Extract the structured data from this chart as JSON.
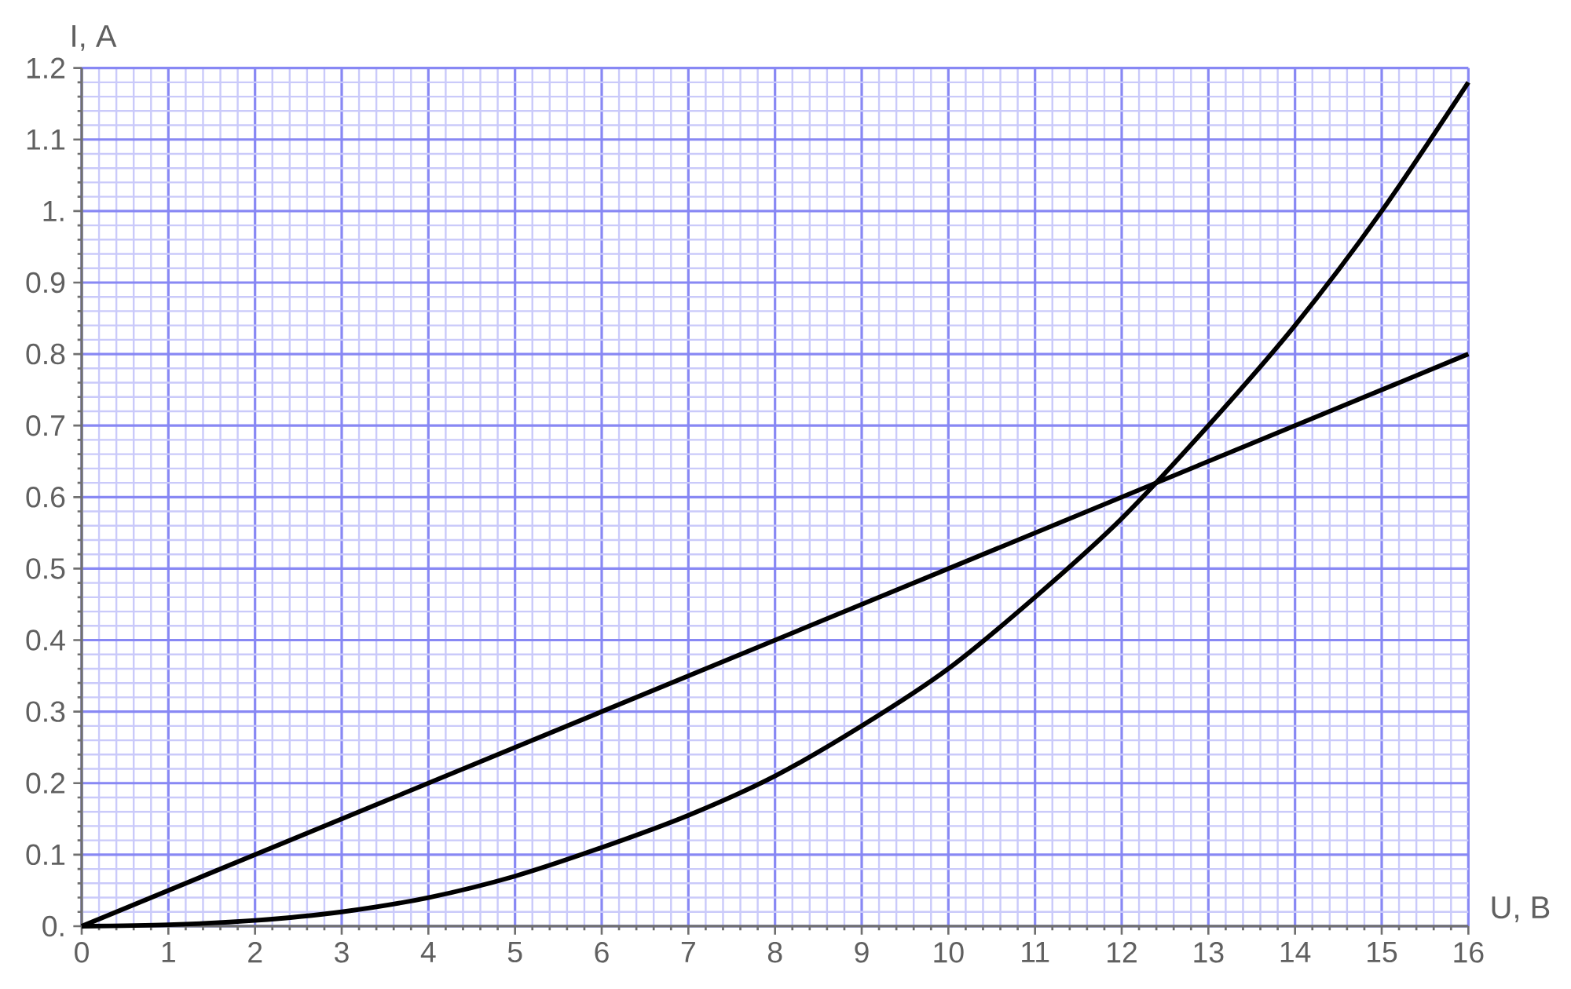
{
  "chart_data": {
    "type": "line",
    "xlabel": "U, B",
    "ylabel": "I, A",
    "grid": true,
    "xlim": [
      0,
      16
    ],
    "ylim": [
      0,
      1.2
    ],
    "xticks": [
      0,
      {
        "value": 0.2,
        "label": null
      },
      {
        "value": 0.4,
        "label": null
      },
      {
        "value": 0.6,
        "label": null
      },
      {
        "value": 0.8,
        "label": null
      },
      1,
      {
        "value": 1.2,
        "label": null
      },
      {
        "value": 1.4,
        "label": null
      },
      {
        "value": 1.6,
        "label": null
      },
      {
        "value": 1.8,
        "label": null
      },
      2,
      {
        "value": 2.2,
        "label": null
      },
      {
        "value": 2.4,
        "label": null
      },
      {
        "value": 2.6,
        "label": null
      },
      {
        "value": 2.8,
        "label": null
      },
      3,
      {
        "value": 3.2,
        "label": null
      },
      {
        "value": 3.4,
        "label": null
      },
      {
        "value": 3.6,
        "label": null
      },
      {
        "value": 3.8,
        "label": null
      },
      4,
      {
        "value": 4.2,
        "label": null
      },
      {
        "value": 4.4,
        "label": null
      },
      {
        "value": 4.6,
        "label": null
      },
      {
        "value": 4.8,
        "label": null
      },
      5,
      {
        "value": 5.2,
        "label": null
      },
      {
        "value": 5.4,
        "label": null
      },
      {
        "value": 5.6,
        "label": null
      },
      {
        "value": 5.8,
        "label": null
      },
      6,
      {
        "value": 6.2,
        "label": null
      },
      {
        "value": 6.4,
        "label": null
      },
      {
        "value": 6.6,
        "label": null
      },
      {
        "value": 6.8,
        "label": null
      },
      7,
      {
        "value": 7.2,
        "label": null
      },
      {
        "value": 7.4,
        "label": null
      },
      {
        "value": 7.6,
        "label": null
      },
      {
        "value": 7.8,
        "label": null
      },
      8,
      {
        "value": 8.2,
        "label": null
      },
      {
        "value": 8.4,
        "label": null
      },
      {
        "value": 8.6,
        "label": null
      },
      {
        "value": 8.8,
        "label": null
      },
      9,
      {
        "value": 9.2,
        "label": null
      },
      {
        "value": 9.4,
        "label": null
      },
      {
        "value": 9.6,
        "label": null
      },
      {
        "value": 9.8,
        "label": null
      },
      10,
      {
        "value": 10.2,
        "label": null
      },
      {
        "value": 10.4,
        "label": null
      },
      {
        "value": 10.6,
        "label": null
      },
      {
        "value": 10.8,
        "label": null
      },
      11,
      {
        "value": 11.2,
        "label": null
      },
      {
        "value": 11.4,
        "label": null
      },
      {
        "value": 11.6,
        "label": null
      },
      {
        "value": 11.8,
        "label": null
      },
      12,
      {
        "value": 12.2,
        "label": null
      },
      {
        "value": 12.4,
        "label": null
      },
      {
        "value": 12.6,
        "label": null
      },
      {
        "value": 12.8,
        "label": null
      },
      13,
      {
        "value": 13.2,
        "label": null
      },
      {
        "value": 13.4,
        "label": null
      },
      {
        "value": 13.6,
        "label": null
      },
      {
        "value": 13.8,
        "label": null
      },
      14,
      {
        "value": 14.2,
        "label": null
      },
      {
        "value": 14.4,
        "label": null
      },
      {
        "value": 14.6,
        "label": null
      },
      {
        "value": 14.8,
        "label": null
      },
      15,
      {
        "value": 15.2,
        "label": null
      },
      {
        "value": 15.4,
        "label": null
      },
      {
        "value": 15.6,
        "label": null
      },
      {
        "value": 15.8,
        "label": null
      },
      16
    ],
    "yticks": [
      {
        "value": 0,
        "label": "0."
      },
      {
        "value": 0.02,
        "label": null
      },
      {
        "value": 0.04,
        "label": null
      },
      {
        "value": 0.06,
        "label": null
      },
      {
        "value": 0.08,
        "label": null
      },
      0.1,
      {
        "value": 0.12,
        "label": null
      },
      {
        "value": 0.14,
        "label": null
      },
      {
        "value": 0.16,
        "label": null
      },
      {
        "value": 0.18,
        "label": null
      },
      0.2,
      {
        "value": 0.22,
        "label": null
      },
      {
        "value": 0.24,
        "label": null
      },
      {
        "value": 0.26,
        "label": null
      },
      {
        "value": 0.28,
        "label": null
      },
      0.3,
      {
        "value": 0.32,
        "label": null
      },
      {
        "value": 0.34,
        "label": null
      },
      {
        "value": 0.36,
        "label": null
      },
      {
        "value": 0.38,
        "label": null
      },
      0.4,
      {
        "value": 0.42,
        "label": null
      },
      {
        "value": 0.44,
        "label": null
      },
      {
        "value": 0.46,
        "label": null
      },
      {
        "value": 0.48,
        "label": null
      },
      0.5,
      {
        "value": 0.52,
        "label": null
      },
      {
        "value": 0.54,
        "label": null
      },
      {
        "value": 0.56,
        "label": null
      },
      {
        "value": 0.58,
        "label": null
      },
      0.6,
      {
        "value": 0.62,
        "label": null
      },
      {
        "value": 0.64,
        "label": null
      },
      {
        "value": 0.66,
        "label": null
      },
      {
        "value": 0.68,
        "label": null
      },
      0.7,
      {
        "value": 0.72,
        "label": null
      },
      {
        "value": 0.74,
        "label": null
      },
      {
        "value": 0.76,
        "label": null
      },
      {
        "value": 0.78,
        "label": null
      },
      0.8,
      {
        "value": 0.82,
        "label": null
      },
      {
        "value": 0.84,
        "label": null
      },
      {
        "value": 0.86,
        "label": null
      },
      {
        "value": 0.88,
        "label": null
      },
      0.9,
      {
        "value": 0.92,
        "label": null
      },
      {
        "value": 0.94,
        "label": null
      },
      {
        "value": 0.96,
        "label": null
      },
      {
        "value": 0.98,
        "label": null
      },
      {
        "value": 1,
        "label": "1."
      },
      {
        "value": 1.02,
        "label": null
      },
      {
        "value": 1.04,
        "label": null
      },
      {
        "value": 1.06,
        "label": null
      },
      {
        "value": 1.08,
        "label": null
      },
      1.1,
      {
        "value": 1.12,
        "label": null
      },
      {
        "value": 1.14,
        "label": null
      },
      {
        "value": 1.16,
        "label": null
      },
      {
        "value": 1.18,
        "label": null
      },
      1.2
    ],
    "series": [
      {
        "color": "#000000",
        "x": [
          0,
          16
        ],
        "values": [
          0,
          0.8
        ]
      },
      {
        "color": "#000000",
        "x": [
          0,
          1,
          2,
          3,
          4,
          5,
          6,
          7,
          8,
          9,
          10,
          11,
          12,
          13,
          14,
          15,
          16
        ],
        "values": [
          0,
          0.002,
          0.008,
          0.02,
          0.04,
          0.07,
          0.11,
          0.155,
          0.21,
          0.28,
          0.36,
          0.46,
          0.57,
          0.7,
          0.84,
          1.0,
          1.18
        ]
      }
    ]
  }
}
